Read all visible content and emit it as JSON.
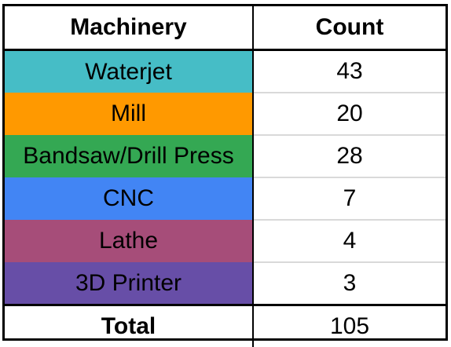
{
  "chart_data": {
    "type": "table",
    "columns": [
      "Machinery",
      "Count"
    ],
    "rows": [
      {
        "name": "Waterjet",
        "value": 43,
        "color": "#46bdc6"
      },
      {
        "name": "Mill",
        "value": 20,
        "color": "#ff9900"
      },
      {
        "name": "Bandsaw/Drill Press",
        "value": 28,
        "color": "#34a853"
      },
      {
        "name": "CNC",
        "value": 7,
        "color": "#4285f4"
      },
      {
        "name": "Lathe",
        "value": 4,
        "color": "#a64d79"
      },
      {
        "name": "3D Printer",
        "value": 3,
        "color": "#674ea7"
      }
    ],
    "total": {
      "label": "Total",
      "value": 105
    }
  }
}
